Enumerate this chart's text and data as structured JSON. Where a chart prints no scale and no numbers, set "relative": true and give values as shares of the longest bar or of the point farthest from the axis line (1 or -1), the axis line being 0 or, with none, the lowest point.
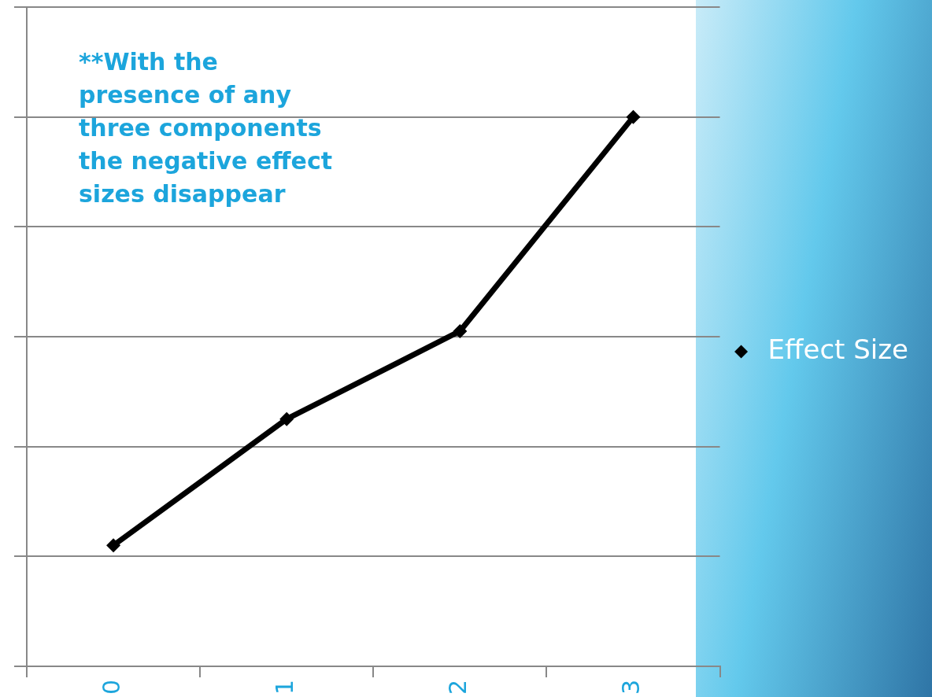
{
  "chart_data": {
    "type": "line",
    "relative": true,
    "categories": [
      "0",
      "1",
      "2",
      "3"
    ],
    "series": [
      {
        "name": "Effect Size",
        "color": "#000000",
        "values": [
          0.22,
          0.45,
          0.61,
          1
        ]
      }
    ],
    "marker": "diamond",
    "line_style": "solid",
    "grid": "y",
    "legend": "right",
    "tick_labels": "x",
    "annotations": [
      "**With the presence  of any three components the negative effect sizes disappear"
    ]
  }
}
